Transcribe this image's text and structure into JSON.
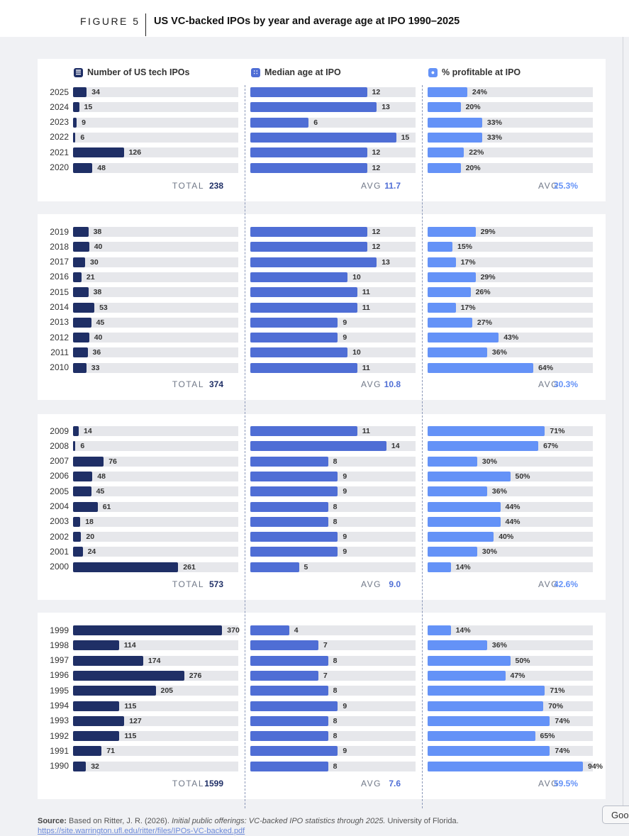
{
  "header": {
    "figure_label": "FIGURE 5",
    "title": "US VC-backed IPOs by year and average age at IPO 1990–2025"
  },
  "columns": [
    {
      "title": "Number of US tech IPOs",
      "icon": "database-icon",
      "summary_label": "TOTAL",
      "color": "#1f2f66"
    },
    {
      "title": "Median age at IPO",
      "icon": "dice-icon",
      "summary_label": "AVG",
      "color": "#4f6ed5"
    },
    {
      "title": "% profitable at IPO",
      "icon": "piggy-bank-icon",
      "summary_label": "AVG",
      "color": "#6492f7"
    }
  ],
  "summaries": [
    [
      "238",
      "11.7",
      "25.3%"
    ],
    [
      "374",
      "10.8",
      "30.3%"
    ],
    [
      "573",
      "9.0",
      "42.6%"
    ],
    [
      "1599",
      "7.6",
      "59.5%"
    ]
  ],
  "chart_data": {
    "type": "bar",
    "title": "US VC-backed IPOs by year and average age at IPO 1990–2025",
    "groups": [
      {
        "years": [
          "2025",
          "2024",
          "2023",
          "2022",
          "2021",
          "2020"
        ]
      },
      {
        "years": [
          "2019",
          "2018",
          "2017",
          "2016",
          "2015",
          "2014",
          "2013",
          "2012",
          "2011",
          "2010"
        ]
      },
      {
        "years": [
          "2009",
          "2008",
          "2007",
          "2006",
          "2005",
          "2004",
          "2003",
          "2002",
          "2001",
          "2000"
        ]
      },
      {
        "years": [
          "1999",
          "1998",
          "1997",
          "1996",
          "1995",
          "1994",
          "1993",
          "1992",
          "1991",
          "1990"
        ]
      }
    ],
    "series": [
      {
        "name": "Number of US tech IPOs",
        "max": 410,
        "values": [
          [
            34,
            15,
            9,
            6,
            126,
            48
          ],
          [
            38,
            40,
            30,
            21,
            38,
            53,
            45,
            40,
            36,
            33
          ],
          [
            14,
            6,
            76,
            48,
            45,
            61,
            18,
            20,
            24,
            261
          ],
          [
            370,
            114,
            174,
            276,
            205,
            115,
            127,
            115,
            71,
            32
          ]
        ],
        "labels": [
          [
            "34",
            "15",
            "9",
            "6",
            "126",
            "48"
          ],
          [
            "38",
            "40",
            "30",
            "21",
            "38",
            "53",
            "45",
            "40",
            "36",
            "33"
          ],
          [
            "14",
            "6",
            "76",
            "48",
            "45",
            "61",
            "18",
            "20",
            "24",
            "261"
          ],
          [
            "370",
            "114",
            "174",
            "276",
            "205",
            "115",
            "127",
            "115",
            "71",
            "32"
          ]
        ]
      },
      {
        "name": "Median age at IPO",
        "max": 17,
        "values": [
          [
            12,
            13,
            6,
            15,
            12,
            12
          ],
          [
            12,
            12,
            13,
            10,
            11,
            11,
            9,
            9,
            10,
            11
          ],
          [
            11,
            14,
            8,
            9,
            9,
            8,
            8,
            9,
            9,
            5
          ],
          [
            4,
            7,
            8,
            7,
            8,
            9,
            8,
            8,
            9,
            8
          ]
        ],
        "labels": [
          [
            "12",
            "13",
            "6",
            "15",
            "12",
            "12"
          ],
          [
            "12",
            "12",
            "13",
            "10",
            "11",
            "11",
            "9",
            "9",
            "10",
            "11"
          ],
          [
            "11",
            "14",
            "8",
            "9",
            "9",
            "8",
            "8",
            "9",
            "9",
            "5"
          ],
          [
            "4",
            "7",
            "8",
            "7",
            "8",
            "9",
            "8",
            "8",
            "9",
            "8"
          ]
        ]
      },
      {
        "name": "% profitable at IPO",
        "max": 100,
        "values": [
          [
            24,
            20,
            33,
            33,
            22,
            20
          ],
          [
            29,
            15,
            17,
            29,
            26,
            17,
            27,
            43,
            36,
            64
          ],
          [
            71,
            67,
            30,
            50,
            36,
            44,
            44,
            40,
            30,
            14
          ],
          [
            14,
            36,
            50,
            47,
            71,
            70,
            74,
            65,
            74,
            94
          ]
        ],
        "labels": [
          [
            "24%",
            "20%",
            "33%",
            "33%",
            "22%",
            "20%"
          ],
          [
            "29%",
            "15%",
            "17%",
            "29%",
            "26%",
            "17%",
            "27%",
            "43%",
            "36%",
            "64%"
          ],
          [
            "71%",
            "67%",
            "30%",
            "50%",
            "36%",
            "44%",
            "44%",
            "40%",
            "30%",
            "14%"
          ],
          [
            "14%",
            "36%",
            "50%",
            "47%",
            "71%",
            "70%",
            "74%",
            "65%",
            "74%",
            "94%"
          ]
        ]
      }
    ]
  },
  "source": {
    "label": "Source:",
    "prefix": "Based on Ritter, J. R. (2026).",
    "publication": "Initial public offerings: VC-backed IPO statistics through 2025.",
    "suffix": "University of Florida.",
    "url": "https://site.warrington.ufl.edu/ritter/files/IPOs-VC-backed.pdf"
  },
  "overlay_button": {
    "label": "Goo"
  }
}
